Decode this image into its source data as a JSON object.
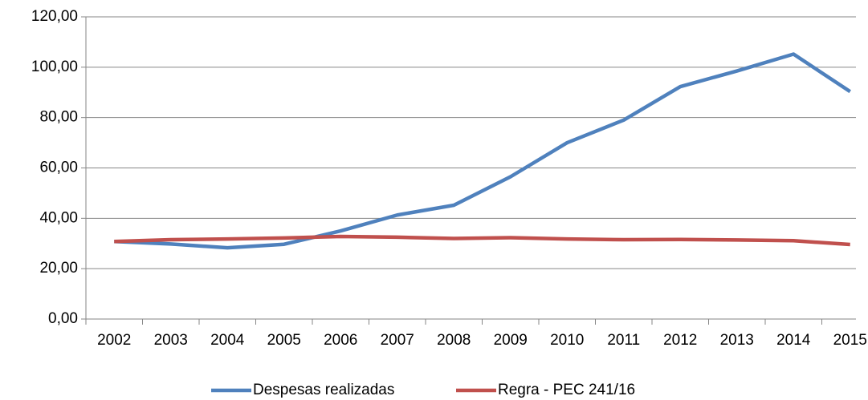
{
  "chart_data": {
    "type": "line",
    "categories": [
      "2002",
      "2003",
      "2004",
      "2005",
      "2006",
      "2007",
      "2008",
      "2009",
      "2010",
      "2011",
      "2012",
      "2013",
      "2014",
      "2015"
    ],
    "series": [
      {
        "name": "Despesas realizadas",
        "color": "#4f81bd",
        "values": [
          30.8,
          29.8,
          28.3,
          29.7,
          35.0,
          41.3,
          45.2,
          56.5,
          70.0,
          79.0,
          92.3,
          98.5,
          105.2,
          90.3
        ]
      },
      {
        "name": "Regra - PEC 241/16",
        "color": "#c0504d",
        "values": [
          30.8,
          31.5,
          31.8,
          32.2,
          32.8,
          32.5,
          32.0,
          32.3,
          31.8,
          31.5,
          31.6,
          31.4,
          31.1,
          29.6
        ]
      }
    ],
    "ylim": [
      0,
      120
    ],
    "yticks": [
      {
        "value": 0,
        "label": "0,00"
      },
      {
        "value": 20,
        "label": "20,00"
      },
      {
        "value": 40,
        "label": "40,00"
      },
      {
        "value": 60,
        "label": "60,00"
      },
      {
        "value": 80,
        "label": "80,00"
      },
      {
        "value": 100,
        "label": "100,00"
      },
      {
        "value": 120,
        "label": "120,00"
      }
    ],
    "grid": true,
    "legend": "bottom"
  }
}
